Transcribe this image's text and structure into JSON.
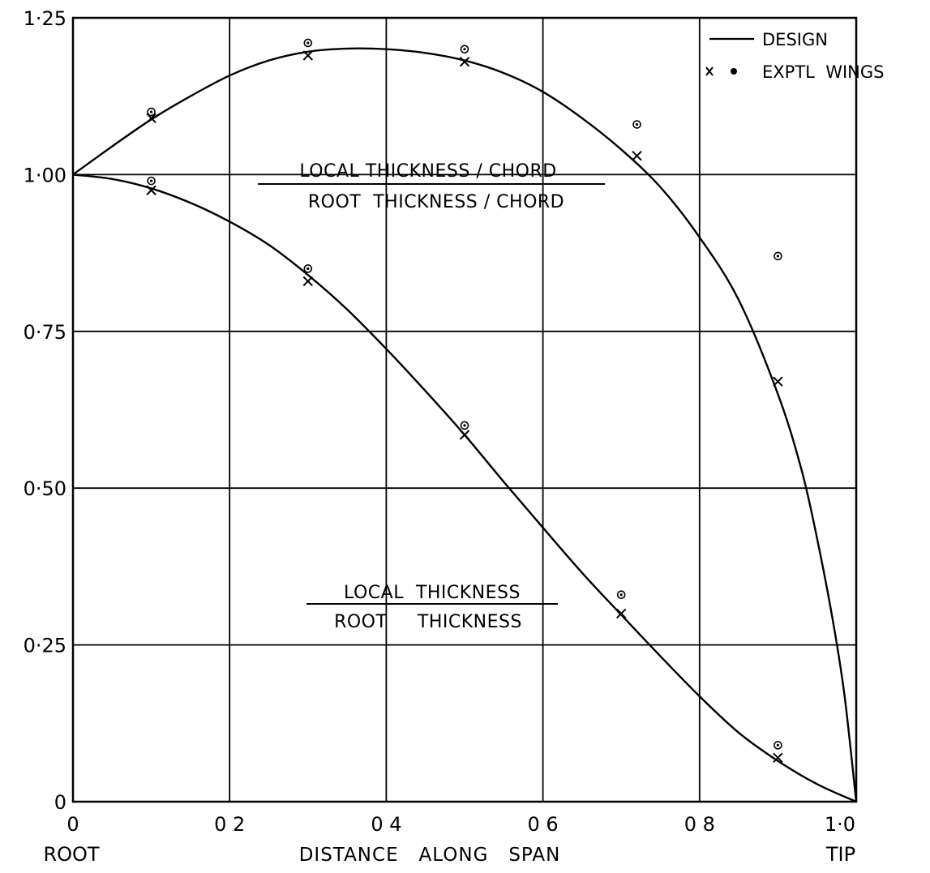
{
  "chart_data": {
    "type": "line",
    "xlim": [
      0,
      1.0
    ],
    "ylim": [
      0,
      1.25
    ],
    "grid": true,
    "legend_position": "top-right",
    "x_ticks": [
      {
        "value": 0,
        "label": "0"
      },
      {
        "value": 0.2,
        "label": "0 2"
      },
      {
        "value": 0.4,
        "label": "0 4"
      },
      {
        "value": 0.6,
        "label": "0 6"
      },
      {
        "value": 0.8,
        "label": "0 8"
      },
      {
        "value": 1.0,
        "label": "1·0"
      }
    ],
    "y_ticks": [
      {
        "value": 0,
        "label": "0"
      },
      {
        "value": 0.25,
        "label": "0·25"
      },
      {
        "value": 0.5,
        "label": "0·50"
      },
      {
        "value": 0.75,
        "label": "0·75"
      },
      {
        "value": 1.0,
        "label": "1·00"
      },
      {
        "value": 1.25,
        "label": "1·25"
      }
    ],
    "x_end_labels": {
      "left": "ROOT",
      "right": "TIP"
    },
    "xlabel": "DISTANCE   ALONG   SPAN",
    "legend": [
      {
        "symbol": "line",
        "label": "DESIGN"
      },
      {
        "symbol": "x-and-circle",
        "label": "EXPTL  WINGS"
      }
    ],
    "series": [
      {
        "annotation_numerator": "LOCAL THICKNESS / CHORD",
        "annotation_denominator": "ROOT  THICKNESS / CHORD",
        "design": [
          [
            0,
            1.0
          ],
          [
            0.05,
            1.045
          ],
          [
            0.1,
            1.088
          ],
          [
            0.15,
            1.125
          ],
          [
            0.2,
            1.158
          ],
          [
            0.25,
            1.182
          ],
          [
            0.3,
            1.196
          ],
          [
            0.35,
            1.201
          ],
          [
            0.4,
            1.2
          ],
          [
            0.45,
            1.194
          ],
          [
            0.5,
            1.182
          ],
          [
            0.55,
            1.162
          ],
          [
            0.6,
            1.132
          ],
          [
            0.65,
            1.09
          ],
          [
            0.7,
            1.04
          ],
          [
            0.75,
            0.98
          ],
          [
            0.8,
            0.9
          ],
          [
            0.85,
            0.8
          ],
          [
            0.9,
            0.65
          ],
          [
            0.93,
            0.53
          ],
          [
            0.95,
            0.42
          ],
          [
            0.97,
            0.29
          ],
          [
            0.985,
            0.17
          ],
          [
            1.0,
            0.0
          ]
        ],
        "exptl_x": [
          [
            0.1,
            1.09
          ],
          [
            0.3,
            1.19
          ],
          [
            0.5,
            1.18
          ],
          [
            0.72,
            1.03
          ],
          [
            0.9,
            0.67
          ]
        ],
        "exptl_o": [
          [
            0.1,
            1.1
          ],
          [
            0.3,
            1.21
          ],
          [
            0.5,
            1.2
          ],
          [
            0.72,
            1.08
          ],
          [
            0.9,
            0.87
          ]
        ]
      },
      {
        "annotation_numerator": "LOCAL  THICKNESS",
        "annotation_denominator": "ROOT     THICKNESS",
        "design": [
          [
            0,
            1.0
          ],
          [
            0.05,
            0.993
          ],
          [
            0.1,
            0.978
          ],
          [
            0.15,
            0.955
          ],
          [
            0.2,
            0.925
          ],
          [
            0.25,
            0.888
          ],
          [
            0.3,
            0.84
          ],
          [
            0.35,
            0.785
          ],
          [
            0.4,
            0.722
          ],
          [
            0.45,
            0.655
          ],
          [
            0.5,
            0.585
          ],
          [
            0.55,
            0.51
          ],
          [
            0.6,
            0.437
          ],
          [
            0.65,
            0.365
          ],
          [
            0.7,
            0.298
          ],
          [
            0.75,
            0.232
          ],
          [
            0.8,
            0.168
          ],
          [
            0.85,
            0.11
          ],
          [
            0.9,
            0.065
          ],
          [
            0.95,
            0.028
          ],
          [
            1.0,
            0.0
          ]
        ],
        "exptl_x": [
          [
            0.1,
            0.975
          ],
          [
            0.3,
            0.83
          ],
          [
            0.5,
            0.585
          ],
          [
            0.7,
            0.3
          ],
          [
            0.9,
            0.07
          ]
        ],
        "exptl_o": [
          [
            0.1,
            0.99
          ],
          [
            0.3,
            0.85
          ],
          [
            0.5,
            0.6
          ],
          [
            0.7,
            0.33
          ],
          [
            0.9,
            0.09
          ]
        ]
      }
    ]
  }
}
